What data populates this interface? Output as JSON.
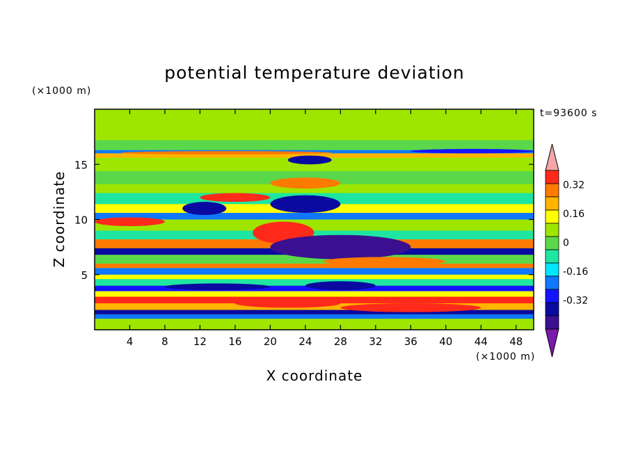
{
  "chart_data": {
    "type": "heatmap",
    "title": "potential temperature deviation",
    "xlabel": "X coordinate",
    "ylabel": "Z coordinate",
    "x_unit": "(×1000 m)",
    "y_unit": "(×1000 m)",
    "time_label": "t=93600 s",
    "xlim": [
      0,
      50
    ],
    "ylim": [
      0,
      20
    ],
    "x_ticks": [
      4,
      8,
      12,
      16,
      20,
      24,
      28,
      32,
      36,
      40,
      44,
      48
    ],
    "y_ticks": [
      5,
      10,
      15
    ],
    "colorbar": {
      "levels": [
        -0.48,
        -0.4,
        -0.32,
        -0.24,
        -0.16,
        -0.08,
        0,
        0.08,
        0.16,
        0.24,
        0.32,
        0.4
      ],
      "tick_labels": [
        "0.32",
        "0.16",
        "0",
        "-0.16",
        "-0.32"
      ],
      "tick_values": [
        0.32,
        0.16,
        0,
        -0.16,
        -0.32
      ],
      "colors_top_to_bottom": [
        "#f4a6a6",
        "#ff2a1a",
        "#ff7a00",
        "#ffb400",
        "#ffff00",
        "#9ee600",
        "#5ad84a",
        "#1ee6a0",
        "#00e6ff",
        "#0f78ff",
        "#1414ff",
        "#0a0aa0",
        "#3a1090",
        "#7a1aaa"
      ]
    },
    "bands": [
      {
        "z": [
          0.0,
          1.0
        ],
        "value": 0.08
      },
      {
        "z": [
          1.0,
          1.4
        ],
        "value": -0.24
      },
      {
        "z": [
          1.4,
          1.8
        ],
        "value": -0.4
      },
      {
        "z": [
          1.8,
          2.4
        ],
        "value": 0.24
      },
      {
        "z": [
          2.4,
          3.0
        ],
        "value": 0.4
      },
      {
        "z": [
          3.0,
          3.5
        ],
        "value": 0.16
      },
      {
        "z": [
          3.5,
          4.0
        ],
        "value": -0.32
      },
      {
        "z": [
          4.0,
          4.6
        ],
        "value": -0.08
      },
      {
        "z": [
          4.6,
          5.0
        ],
        "value": 0.16
      },
      {
        "z": [
          5.0,
          5.6
        ],
        "value": -0.24
      },
      {
        "z": [
          5.6,
          6.0
        ],
        "value": 0.32
      },
      {
        "z": [
          6.0,
          6.8
        ],
        "value": 0.0
      },
      {
        "z": [
          6.8,
          7.4
        ],
        "value": -0.4
      },
      {
        "z": [
          7.4,
          8.2
        ],
        "value": 0.32
      },
      {
        "z": [
          8.2,
          9.0
        ],
        "value": -0.08
      },
      {
        "z": [
          9.0,
          10.0
        ],
        "value": 0.08
      },
      {
        "z": [
          10.0,
          10.6
        ],
        "value": -0.24
      },
      {
        "z": [
          10.6,
          11.4
        ],
        "value": 0.16
      },
      {
        "z": [
          11.4,
          12.4
        ],
        "value": -0.08
      },
      {
        "z": [
          12.4,
          13.2
        ],
        "value": 0.08
      },
      {
        "z": [
          13.2,
          14.4
        ],
        "value": 0.0
      },
      {
        "z": [
          14.4,
          15.6
        ],
        "value": 0.08
      },
      {
        "z": [
          15.6,
          16.0
        ],
        "value": 0.24
      },
      {
        "z": [
          16.0,
          16.3
        ],
        "value": -0.24
      },
      {
        "z": [
          16.3,
          17.2
        ],
        "value": 0.0
      },
      {
        "z": [
          17.2,
          20.0
        ],
        "value": 0.08
      }
    ],
    "features": [
      {
        "x": [
          18,
          25
        ],
        "z": [
          7.8,
          9.8
        ],
        "value": 0.4
      },
      {
        "x": [
          20,
          36
        ],
        "z": [
          6.4,
          8.6
        ],
        "value": -0.48
      },
      {
        "x": [
          26,
          40
        ],
        "z": [
          5.8,
          6.6
        ],
        "value": 0.32
      },
      {
        "x": [
          16,
          28
        ],
        "z": [
          2.0,
          2.8
        ],
        "value": 0.4
      },
      {
        "x": [
          28,
          44
        ],
        "z": [
          1.6,
          2.4
        ],
        "value": 0.4
      },
      {
        "x": [
          8,
          20
        ],
        "z": [
          3.6,
          4.2
        ],
        "value": -0.4
      },
      {
        "x": [
          24,
          32
        ],
        "z": [
          3.6,
          4.4
        ],
        "value": -0.4
      },
      {
        "x": [
          22,
          27
        ],
        "z": [
          15.0,
          15.8
        ],
        "value": -0.4
      },
      {
        "x": [
          36,
          50
        ],
        "z": [
          16.0,
          16.4
        ],
        "value": -0.32
      },
      {
        "x": [
          3,
          27
        ],
        "z": [
          15.9,
          16.2
        ],
        "value": 0.32
      },
      {
        "x": [
          10,
          15
        ],
        "z": [
          10.4,
          11.6
        ],
        "value": -0.4
      },
      {
        "x": [
          20,
          28
        ],
        "z": [
          10.6,
          12.2
        ],
        "value": -0.4
      },
      {
        "x": [
          12,
          20
        ],
        "z": [
          11.6,
          12.4
        ],
        "value": 0.4
      },
      {
        "x": [
          20,
          28
        ],
        "z": [
          12.8,
          13.8
        ],
        "value": 0.32
      },
      {
        "x": [
          0,
          8
        ],
        "z": [
          9.4,
          10.2
        ],
        "value": 0.4
      }
    ]
  }
}
